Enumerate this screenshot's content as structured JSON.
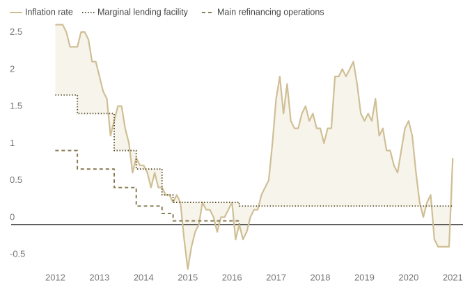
{
  "chart_data": {
    "type": "line",
    "xlim": [
      2011,
      2021.2
    ],
    "xticks": [
      2012,
      2013,
      2014,
      2015,
      2016,
      2017,
      2018,
      2019,
      2020,
      2021
    ],
    "ylim": [
      -0.7,
      2.7
    ],
    "yticks": [
      -0.5,
      0,
      0.5,
      1,
      1.5,
      2,
      2.5
    ],
    "grid": false,
    "legend": "top-left",
    "series": [
      {
        "name": "Inflation rate",
        "color": "#cfbf95",
        "style": "solid",
        "x": [
          2012,
          2012.083,
          2012.167,
          2012.25,
          2012.333,
          2012.417,
          2012.5,
          2012.583,
          2012.667,
          2012.75,
          2012.833,
          2012.917,
          2013,
          2013.083,
          2013.167,
          2013.25,
          2013.333,
          2013.417,
          2013.5,
          2013.583,
          2013.667,
          2013.75,
          2013.833,
          2013.917,
          2014,
          2014.083,
          2014.167,
          2014.25,
          2014.333,
          2014.417,
          2014.5,
          2014.583,
          2014.667,
          2014.75,
          2014.833,
          2014.917,
          2015,
          2015.083,
          2015.167,
          2015.25,
          2015.333,
          2015.417,
          2015.5,
          2015.583,
          2015.667,
          2015.75,
          2015.833,
          2015.917,
          2016,
          2016.083,
          2016.167,
          2016.25,
          2016.333,
          2016.417,
          2016.5,
          2016.583,
          2016.667,
          2016.75,
          2016.833,
          2016.917,
          2017,
          2017.083,
          2017.167,
          2017.25,
          2017.333,
          2017.417,
          2017.5,
          2017.583,
          2017.667,
          2017.75,
          2017.833,
          2017.917,
          2018,
          2018.083,
          2018.167,
          2018.25,
          2018.333,
          2018.417,
          2018.5,
          2018.583,
          2018.667,
          2018.75,
          2018.833,
          2018.917,
          2019,
          2019.083,
          2019.167,
          2019.25,
          2019.333,
          2019.417,
          2019.5,
          2019.583,
          2019.667,
          2019.75,
          2019.833,
          2019.917,
          2020,
          2020.083,
          2020.167,
          2020.25,
          2020.333,
          2020.417,
          2020.5,
          2020.583,
          2020.667,
          2020.75,
          2020.833,
          2020.917,
          2021
        ],
        "values": [
          2.7,
          2.7,
          2.7,
          2.6,
          2.4,
          2.4,
          2.4,
          2.6,
          2.6,
          2.5,
          2.2,
          2.2,
          2.0,
          1.8,
          1.7,
          1.2,
          1.4,
          1.6,
          1.6,
          1.3,
          1.1,
          0.7,
          0.9,
          0.8,
          0.8,
          0.7,
          0.5,
          0.7,
          0.5,
          0.5,
          0.4,
          0.4,
          0.3,
          0.4,
          0.3,
          -0.2,
          -0.6,
          -0.3,
          -0.1,
          0.0,
          0.3,
          0.2,
          0.2,
          0.1,
          -0.1,
          0.1,
          0.1,
          0.2,
          0.3,
          -0.2,
          0.0,
          -0.2,
          -0.1,
          0.1,
          0.2,
          0.2,
          0.4,
          0.5,
          0.6,
          1.1,
          1.7,
          2.0,
          1.5,
          1.9,
          1.4,
          1.3,
          1.3,
          1.5,
          1.6,
          1.4,
          1.5,
          1.3,
          1.3,
          1.1,
          1.3,
          1.3,
          2.0,
          2.0,
          2.1,
          2.0,
          2.1,
          2.2,
          1.9,
          1.5,
          1.4,
          1.5,
          1.4,
          1.7,
          1.2,
          1.3,
          1.0,
          1.0,
          0.8,
          0.7,
          1.0,
          1.3,
          1.4,
          1.2,
          0.7,
          0.3,
          0.1,
          0.3,
          0.4,
          -0.2,
          -0.3,
          -0.3,
          -0.3,
          -0.3,
          0.9
        ]
      },
      {
        "name": "Marginal lending facility",
        "color": "#5e5330",
        "style": "dotted",
        "step": true,
        "x": [
          2012,
          2012.5,
          2013.333,
          2013.833,
          2014.417,
          2014.667,
          2016.167,
          2021
        ],
        "values": [
          1.75,
          1.5,
          1.0,
          0.75,
          0.4,
          0.3,
          0.25,
          0.25
        ]
      },
      {
        "name": "Main refinancing operations",
        "color": "#8a7d55",
        "style": "dashed",
        "step": true,
        "x": [
          2012,
          2012.5,
          2013.333,
          2013.833,
          2014.417,
          2014.667,
          2016.167
        ],
        "values": [
          1.0,
          0.75,
          0.5,
          0.25,
          0.15,
          0.05,
          0
        ]
      }
    ]
  }
}
